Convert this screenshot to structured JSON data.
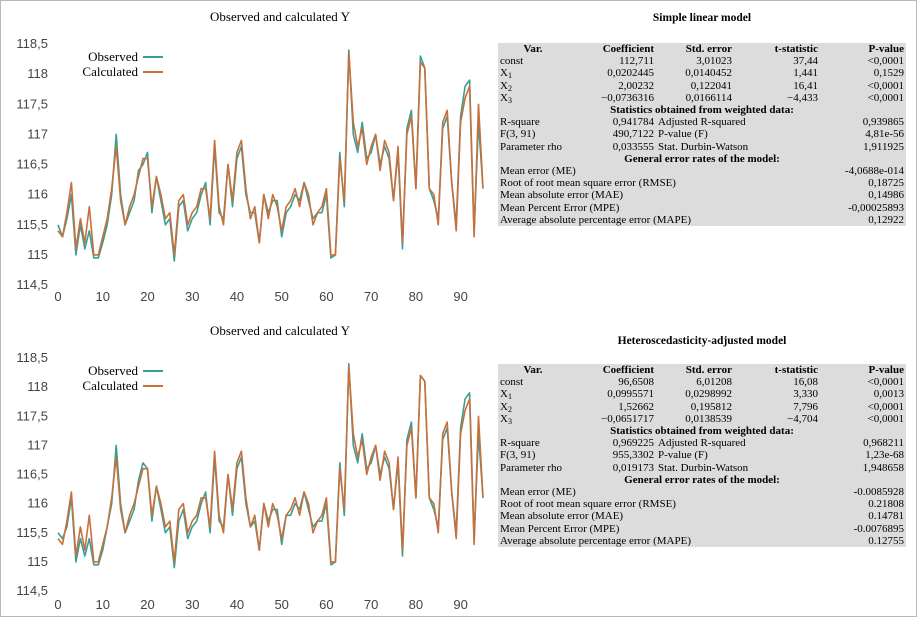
{
  "colors": {
    "observed": "#3a9e96",
    "calculated": "#c8703c"
  },
  "chart_data": [
    {
      "type": "line",
      "title": "Observed and calculated Y",
      "ylim": [
        114.5,
        118.5
      ],
      "xlim": [
        0,
        95
      ],
      "yticks": [
        "114,5",
        "115",
        "115,5",
        "116",
        "116,5",
        "117",
        "117,5",
        "118",
        "118,5"
      ],
      "xticks": [
        "0",
        "10",
        "20",
        "30",
        "40",
        "50",
        "60",
        "70",
        "80",
        "90"
      ],
      "legend": "top-left",
      "series": [
        {
          "name": "Observed",
          "values": [
            115.5,
            115.3,
            115.6,
            116.0,
            115.0,
            115.5,
            115.1,
            115.4,
            114.95,
            114.95,
            115.2,
            115.5,
            116.0,
            117.0,
            116.0,
            115.5,
            115.7,
            115.9,
            116.4,
            116.5,
            116.7,
            115.7,
            116.3,
            115.9,
            115.5,
            115.6,
            114.9,
            115.8,
            115.9,
            115.4,
            115.6,
            115.7,
            116.0,
            116.2,
            115.5,
            116.8,
            115.7,
            115.6,
            116.5,
            115.8,
            116.6,
            116.8,
            116.0,
            115.7,
            115.7,
            115.2,
            116.0,
            115.7,
            115.9,
            115.9,
            115.3,
            115.7,
            115.8,
            116.0,
            115.9,
            116.2,
            115.9,
            115.6,
            115.7,
            115.7,
            116.0,
            114.95,
            115.0,
            116.7,
            115.8,
            118.4,
            117.0,
            116.7,
            117.2,
            116.6,
            116.7,
            117.0,
            116.5,
            116.8,
            116.6,
            115.9,
            116.7,
            115.1,
            117.1,
            117.4,
            116.1,
            118.3,
            118.1,
            116.1,
            115.9,
            115.6,
            117.1,
            117.3,
            116.2,
            115.5,
            117.3,
            117.8,
            117.9,
            115.4,
            117.2,
            116.1
          ]
        },
        {
          "name": "Calculated",
          "values": [
            115.4,
            115.3,
            115.7,
            116.2,
            115.1,
            115.6,
            115.2,
            115.8,
            115.0,
            115.0,
            115.3,
            115.6,
            116.1,
            116.8,
            115.9,
            115.5,
            115.8,
            116.0,
            116.3,
            116.6,
            116.6,
            115.8,
            116.3,
            116.0,
            115.6,
            115.7,
            115.0,
            115.9,
            116.0,
            115.5,
            115.7,
            115.8,
            116.1,
            116.1,
            115.6,
            116.9,
            115.8,
            115.5,
            116.5,
            115.9,
            116.7,
            116.9,
            116.1,
            115.6,
            115.8,
            115.2,
            116.0,
            115.6,
            116.0,
            115.8,
            115.4,
            115.8,
            115.9,
            116.1,
            115.8,
            116.2,
            116.0,
            115.5,
            115.7,
            115.8,
            116.1,
            115.0,
            115.0,
            116.6,
            115.9,
            118.35,
            117.2,
            116.8,
            117.1,
            116.5,
            116.8,
            117.0,
            116.4,
            116.9,
            116.7,
            115.9,
            116.8,
            115.2,
            117.0,
            117.3,
            116.1,
            118.2,
            118.1,
            116.1,
            116.0,
            115.5,
            117.2,
            117.4,
            116.2,
            115.4,
            117.2,
            117.6,
            117.8,
            115.3,
            117.5,
            116.1
          ]
        }
      ]
    },
    {
      "type": "line",
      "title": "Observed and calculated Y",
      "ylim": [
        114.5,
        118.5
      ],
      "xlim": [
        0,
        95
      ],
      "yticks": [
        "114,5",
        "115",
        "115,5",
        "116",
        "116,5",
        "117",
        "117,5",
        "118",
        "118,5"
      ],
      "xticks": [
        "0",
        "10",
        "20",
        "30",
        "40",
        "50",
        "60",
        "70",
        "80",
        "90"
      ],
      "legend": "top-left",
      "series": [
        {
          "name": "Observed",
          "values": [
            115.5,
            115.4,
            115.6,
            116.1,
            115.0,
            115.4,
            115.1,
            115.4,
            114.95,
            114.95,
            115.2,
            115.6,
            116.0,
            117.0,
            116.0,
            115.5,
            115.7,
            115.9,
            116.4,
            116.7,
            116.6,
            115.7,
            116.3,
            115.9,
            115.5,
            115.6,
            114.9,
            115.7,
            115.9,
            115.4,
            115.6,
            115.7,
            116.0,
            116.2,
            115.5,
            116.8,
            115.7,
            115.6,
            116.5,
            115.8,
            116.6,
            116.8,
            116.0,
            115.6,
            115.7,
            115.2,
            116.0,
            115.7,
            115.9,
            115.9,
            115.3,
            115.8,
            115.8,
            116.0,
            115.9,
            116.2,
            115.9,
            115.6,
            115.7,
            115.7,
            116.0,
            114.95,
            115.0,
            116.7,
            115.8,
            118.4,
            117.0,
            116.7,
            117.2,
            116.6,
            116.7,
            117.0,
            116.5,
            116.8,
            116.6,
            115.9,
            116.7,
            115.1,
            117.1,
            117.4,
            116.1,
            118.2,
            118.1,
            116.1,
            115.9,
            115.6,
            117.1,
            117.3,
            116.2,
            115.5,
            117.3,
            117.8,
            117.9,
            115.4,
            117.2,
            116.1
          ]
        },
        {
          "name": "Calculated",
          "values": [
            115.4,
            115.3,
            115.7,
            116.2,
            115.1,
            115.6,
            115.2,
            115.8,
            115.0,
            115.0,
            115.3,
            115.6,
            116.1,
            116.8,
            115.9,
            115.5,
            115.8,
            116.0,
            116.3,
            116.6,
            116.6,
            115.8,
            116.3,
            116.0,
            115.6,
            115.7,
            115.0,
            115.9,
            116.0,
            115.5,
            115.7,
            115.8,
            116.1,
            116.1,
            115.6,
            116.9,
            115.8,
            115.5,
            116.5,
            115.9,
            116.7,
            116.9,
            116.1,
            115.6,
            115.8,
            115.2,
            116.0,
            115.6,
            116.0,
            115.8,
            115.4,
            115.8,
            115.9,
            116.1,
            115.8,
            116.2,
            116.0,
            115.5,
            115.7,
            115.8,
            116.1,
            115.0,
            115.0,
            116.6,
            115.9,
            118.35,
            117.2,
            116.8,
            117.1,
            116.5,
            116.8,
            117.0,
            116.4,
            116.9,
            116.7,
            115.9,
            116.8,
            115.2,
            117.0,
            117.3,
            116.1,
            118.2,
            118.1,
            116.1,
            116.0,
            115.5,
            117.2,
            117.4,
            116.2,
            115.4,
            117.2,
            117.6,
            117.8,
            115.3,
            117.5,
            116.1
          ]
        }
      ]
    }
  ],
  "tables": [
    {
      "title": "Simple linear model",
      "headers": [
        "Var.",
        "Coefficient",
        "Std. error",
        "t-statistic",
        "P-value"
      ],
      "rows": [
        {
          "var": "const",
          "sub": "",
          "coef": "112,711",
          "se": "3,01023",
          "t": "37,44",
          "p": "<0,0001"
        },
        {
          "var": "X",
          "sub": "1",
          "coef": "0,0202445",
          "se": "0,0140452",
          "t": "1,441",
          "p": "0,1529"
        },
        {
          "var": "X",
          "sub": "2",
          "coef": "2,00232",
          "se": "0,122041",
          "t": "16,41",
          "p": "<0,0001"
        },
        {
          "var": "X",
          "sub": "3",
          "coef": "−0,0736316",
          "se": "0,0166114",
          "t": "−4,433",
          "p": "<0,0001"
        }
      ],
      "weighted_title": "Statistics obtained from weighted data:",
      "weighted": [
        {
          "l1": "R-square",
          "v1": "0,941784",
          "l2": "Adjusted R-squared",
          "v2": "0,939865"
        },
        {
          "l1": "F(3, 91)",
          "v1": "490,7122",
          "l2": "P-value (F)",
          "v2": "4,81e-56"
        },
        {
          "l1": "Parameter rho",
          "v1": "0,033555",
          "l2": "Stat. Durbin-Watson",
          "v2": "1,911925"
        }
      ],
      "errors_title": "General error rates of the model:",
      "errors": [
        {
          "label": "Mean error (ME)",
          "value": "-4,0688e-014"
        },
        {
          "label": "Root of root mean square error (RMSE)",
          "value": "0,18725"
        },
        {
          "label": "Mean absolute error (MAE)",
          "value": "0,14986"
        },
        {
          "label": "Mean Percent Error (MPE)",
          "value": "-0,00025893"
        },
        {
          "label": "Average absolute percentage error (MAPE)",
          "value": "0,12922"
        }
      ]
    },
    {
      "title": "Heteroscedasticity-adjusted model",
      "headers": [
        "Var.",
        "Coefficient",
        "Std. error",
        "t-statistic",
        "P-value"
      ],
      "rows": [
        {
          "var": "const",
          "sub": "",
          "coef": "96,6508",
          "se": "6,01208",
          "t": "16,08",
          "p": "<0,0001"
        },
        {
          "var": "X",
          "sub": "1",
          "coef": "0,0995571",
          "se": "0,0298992",
          "t": "3,330",
          "p": "0,0013"
        },
        {
          "var": "X",
          "sub": "2",
          "coef": "1,52662",
          "se": "0,195812",
          "t": "7,796",
          "p": "<0,0001"
        },
        {
          "var": "X",
          "sub": "3",
          "coef": "−0,0651717",
          "se": "0,0138539",
          "t": "−4,704",
          "p": "<0,0001"
        }
      ],
      "weighted_title": "Statistics obtained from weighted data:",
      "weighted": [
        {
          "l1": "R-square",
          "v1": "0,969225",
          "l2": "Adjusted R-squared",
          "v2": "0,968211"
        },
        {
          "l1": "F(3, 91)",
          "v1": "955,3302",
          "l2": "P-value (F)",
          "v2": "1,23e-68"
        },
        {
          "l1": "Parameter rho",
          "v1": "0,019173",
          "l2": "Stat. Durbin-Watson",
          "v2": "1,948658"
        }
      ],
      "errors_title": "General error rates of the model:",
      "errors": [
        {
          "label": "Mean error (ME)",
          "value": "-0.0085928"
        },
        {
          "label": "Root of root mean square error (RMSE)",
          "value": "0.21808"
        },
        {
          "label": "Mean absolute error (MAE)",
          "value": "0.14781"
        },
        {
          "label": "Mean Percent Error (MPE)",
          "value": "-0.0076895"
        },
        {
          "label": "Average absolute percentage error (MAPE)",
          "value": "0.12755"
        }
      ]
    }
  ]
}
